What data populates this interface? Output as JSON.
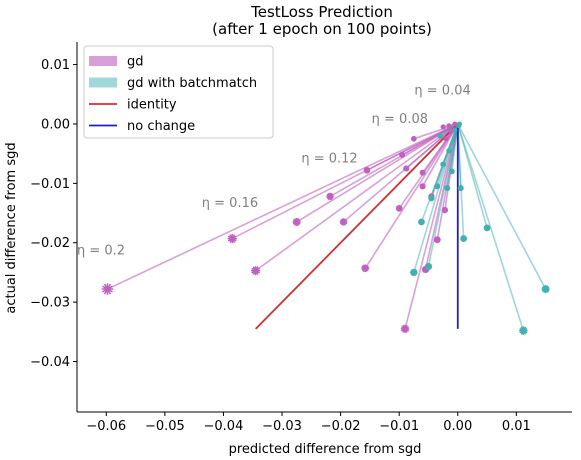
{
  "chart_data": {
    "type": "scatter",
    "title": "TestLoss Prediction",
    "subtitle": "(after 1 epoch on 100 points)",
    "xlabel": "predicted difference from sgd",
    "ylabel": "actual difference from sgd",
    "xlim": [
      -0.065,
      0.0195
    ],
    "ylim": [
      -0.0485,
      0.0138
    ],
    "xticks": [
      -0.06,
      -0.05,
      -0.04,
      -0.03,
      -0.02,
      -0.01,
      0.0,
      0.01
    ],
    "xtick_labels": [
      "−0.06",
      "−0.05",
      "−0.04",
      "−0.03",
      "−0.02",
      "−0.01",
      "0.00",
      "0.01"
    ],
    "yticks": [
      0.01,
      0.0,
      -0.01,
      -0.02,
      -0.03,
      -0.04
    ],
    "ytick_labels": [
      "0.01",
      "0.00",
      "−0.01",
      "−0.02",
      "−0.03",
      "−0.04"
    ],
    "grid": false,
    "legend_position": "upper-left",
    "colors": {
      "gd": "#c060c0",
      "gd_batchmatch": "#40b0b0",
      "identity": "#d03030",
      "no_change": "#2020c0",
      "annotation": "#808080"
    },
    "legend": [
      {
        "label": "gd",
        "kind": "patch",
        "color": "#d8a0d8"
      },
      {
        "label": "gd with batchmatch",
        "kind": "patch",
        "color": "#a0d8d8"
      },
      {
        "label": "identity",
        "kind": "line",
        "color": "#d03030"
      },
      {
        "label": "no change",
        "kind": "line",
        "color": "#2020c0"
      }
    ],
    "series": [
      {
        "name": "gd",
        "points": [
          {
            "x": -0.0598,
            "y": -0.0278
          },
          {
            "x": -0.0385,
            "y": -0.0193
          },
          {
            "x": -0.0345,
            "y": -0.0247
          },
          {
            "x": -0.0218,
            "y": -0.0122
          },
          {
            "x": -0.0275,
            "y": -0.0165
          },
          {
            "x": -0.0195,
            "y": -0.0165
          },
          {
            "x": -0.0158,
            "y": -0.0243
          },
          {
            "x": -0.0155,
            "y": -0.0078
          },
          {
            "x": -0.0095,
            "y": -0.0052
          },
          {
            "x": -0.0088,
            "y": -0.0075
          },
          {
            "x": -0.0075,
            "y": -0.0025
          },
          {
            "x": -0.006,
            "y": -0.0082
          },
          {
            "x": -0.009,
            "y": -0.0345
          },
          {
            "x": -0.0055,
            "y": -0.0245
          },
          {
            "x": -0.01,
            "y": -0.0142
          },
          {
            "x": -0.0045,
            "y": -0.0122
          },
          {
            "x": -0.0025,
            "y": -0.0005
          },
          {
            "x": -0.002,
            "y": -0.0025
          },
          {
            "x": -0.0015,
            "y": -0.0003
          },
          {
            "x": -0.006,
            "y": -0.0105
          },
          {
            "x": -0.0035,
            "y": -0.0195
          },
          {
            "x": -0.0022,
            "y": -0.0145
          },
          {
            "x": -0.0012,
            "y": -0.0012
          },
          {
            "x": -0.0005,
            "y": 0.0
          }
        ]
      },
      {
        "name": "gd with batchmatch",
        "points": [
          {
            "x": 0.015,
            "y": -0.0278
          },
          {
            "x": 0.0112,
            "y": -0.0348
          },
          {
            "x": 0.005,
            "y": -0.0175
          },
          {
            "x": 0.001,
            "y": -0.0193
          },
          {
            "x": -0.0075,
            "y": -0.025
          },
          {
            "x": -0.005,
            "y": -0.024
          },
          {
            "x": 0.0005,
            "y": -0.0108
          },
          {
            "x": -0.0035,
            "y": -0.0105
          },
          {
            "x": -0.0045,
            "y": -0.0125
          },
          {
            "x": -0.001,
            "y": -0.008
          },
          {
            "x": -0.0025,
            "y": -0.0068
          },
          {
            "x": -0.0015,
            "y": -0.0045
          },
          {
            "x": -0.0062,
            "y": -0.0165
          },
          {
            "x": -0.003,
            "y": -0.002
          },
          {
            "x": 0.0002,
            "y": -0.0003
          },
          {
            "x": -0.0005,
            "y": -0.001
          },
          {
            "x": -0.0018,
            "y": -0.0108
          },
          {
            "x": 0.0003,
            "y": 0.0
          }
        ]
      }
    ],
    "identity_line": {
      "x": [
        -0.0345,
        0.0
      ],
      "y": [
        -0.0345,
        0.0
      ]
    },
    "no_change_line": {
      "x": [
        0.0,
        0.0
      ],
      "y": [
        -0.0345,
        0.0
      ]
    },
    "annotations": [
      {
        "text": "η = 0.04",
        "x": -0.0074,
        "y": 0.005
      },
      {
        "text": "η = 0.08",
        "x": -0.0147,
        "y": 0.0002
      },
      {
        "text": "η = 0.12",
        "x": -0.0267,
        "y": -0.0065
      },
      {
        "text": "η = 0.16",
        "x": -0.0437,
        "y": -0.014
      },
      {
        "text": "η = 0.2",
        "x": -0.065,
        "y": -0.022
      }
    ]
  }
}
